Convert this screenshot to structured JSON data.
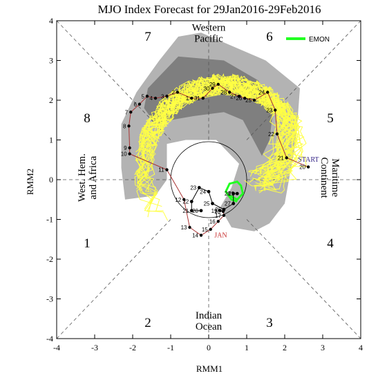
{
  "chart_data": {
    "type": "scatter",
    "title": "MJO Index Forecast for 29Jan2016-29Feb2016",
    "xlabel": "RMM1",
    "ylabel": "RMM2",
    "xlim": [
      -4,
      4
    ],
    "ylim": [
      -4,
      4
    ],
    "xticks": [
      "-4",
      "-3",
      "-2",
      "-1",
      "0",
      "1",
      "2",
      "3",
      "4"
    ],
    "yticks": [
      "-4",
      "-3",
      "-2",
      "-1",
      "0",
      "1",
      "2",
      "3",
      "4"
    ],
    "phases": [
      {
        "label": "1",
        "x": -3.2,
        "y": -1.6
      },
      {
        "label": "2",
        "x": -1.6,
        "y": -3.6
      },
      {
        "label": "3",
        "x": 1.6,
        "y": -3.6
      },
      {
        "label": "4",
        "x": 3.2,
        "y": -1.6
      },
      {
        "label": "5",
        "x": 3.2,
        "y": 1.55
      },
      {
        "label": "6",
        "x": 1.6,
        "y": 3.6
      },
      {
        "label": "7",
        "x": -1.6,
        "y": 3.6
      },
      {
        "label": "8",
        "x": -3.2,
        "y": 1.55
      }
    ],
    "regions": [
      {
        "lines": [
          "Western",
          "Pacific"
        ],
        "x": 0,
        "y": 3.7,
        "rotate": 0
      },
      {
        "lines": [
          "Indian",
          "Ocean"
        ],
        "x": 0,
        "y": -3.55,
        "rotate": 0
      },
      {
        "lines": [
          "West. Hem.",
          "and Africa"
        ],
        "x": -3.2,
        "y": 0.05,
        "rotate": -90
      },
      {
        "lines": [
          "Maritime",
          "Continent"
        ],
        "x": 3.2,
        "y": 0.05,
        "rotate": 90
      }
    ],
    "legend": {
      "label": "EMON",
      "color": "#22ff22",
      "position": "top-right"
    },
    "observed": {
      "color": "#a83232",
      "days": [
        {
          "d": "20",
          "x": 2.62,
          "y": 0.32
        },
        {
          "d": "21",
          "x": 2.05,
          "y": 0.55
        },
        {
          "d": "22",
          "x": 1.8,
          "y": 1.15
        },
        {
          "d": "23",
          "x": 1.75,
          "y": 1.75
        },
        {
          "d": "24",
          "x": 1.55,
          "y": 2.2
        },
        {
          "d": "25",
          "x": 1.2,
          "y": 2.0
        },
        {
          "d": "26",
          "x": 0.95,
          "y": 2.05
        },
        {
          "d": "27",
          "x": 0.8,
          "y": 2.1
        },
        {
          "d": "28",
          "x": 0.55,
          "y": 2.2
        },
        {
          "d": "29",
          "x": 0.25,
          "y": 2.4
        },
        {
          "d": "30",
          "x": 0.1,
          "y": 2.3
        },
        {
          "d": "31",
          "x": -0.15,
          "y": 2.05
        },
        {
          "d": "1",
          "x": -0.45,
          "y": 2.05
        },
        {
          "d": "2",
          "x": -0.82,
          "y": 2.2
        },
        {
          "d": "3",
          "x": -1.1,
          "y": 2.1
        },
        {
          "d": "4",
          "x": -1.4,
          "y": 2.05
        },
        {
          "d": "5",
          "x": -1.62,
          "y": 2.1
        },
        {
          "d": "6",
          "x": -1.82,
          "y": 1.9
        },
        {
          "d": "7",
          "x": -2.05,
          "y": 1.7
        },
        {
          "d": "8",
          "x": -2.1,
          "y": 1.35
        },
        {
          "d": "9",
          "x": -2.08,
          "y": 0.8
        },
        {
          "d": "10",
          "x": -2.08,
          "y": 0.65
        },
        {
          "d": "11",
          "x": -1.1,
          "y": 0.25
        },
        {
          "d": "12",
          "x": -0.65,
          "y": -0.5
        },
        {
          "d": "13",
          "x": -0.5,
          "y": -1.2
        },
        {
          "d": "14",
          "x": -0.2,
          "y": -1.4
        },
        {
          "d": "15",
          "x": 0.05,
          "y": -1.25
        },
        {
          "d": "16",
          "x": 0.25,
          "y": -1.05
        },
        {
          "d": "17",
          "x": 0.4,
          "y": -0.9
        },
        {
          "d": "18",
          "x": 0.38,
          "y": -0.8
        },
        {
          "d": "19",
          "x": 0.3,
          "y": -0.78
        }
      ],
      "month_labels": [
        {
          "text": "JAN",
          "x": 0.15,
          "y": -1.45,
          "color": "#c83232"
        },
        {
          "text": "START",
          "x": 2.35,
          "y": 0.45,
          "color": "#3a2a8a"
        }
      ]
    },
    "ensemble_mean": {
      "color": "#000000",
      "days": [
        {
          "d": "20",
          "x": -0.2,
          "y": -0.78
        },
        {
          "d": "21",
          "x": -0.45,
          "y": -0.78
        },
        {
          "d": "22",
          "x": -0.45,
          "y": -0.55
        },
        {
          "d": "23",
          "x": -0.25,
          "y": -0.2
        },
        {
          "d": "24",
          "x": 0.0,
          "y": -0.3
        },
        {
          "d": "25",
          "x": 0.1,
          "y": -0.6
        },
        {
          "d": "26",
          "x": 0.4,
          "y": -0.75
        },
        {
          "d": "27",
          "x": 0.65,
          "y": -0.6
        },
        {
          "d": "28",
          "x": 0.65,
          "y": -0.35
        },
        {
          "d": "29",
          "x": 0.75,
          "y": -0.35
        }
      ]
    },
    "emon_track": {
      "x": [
        0.55,
        0.75,
        0.9,
        0.85,
        0.75,
        0.55,
        0.45,
        0.6,
        0.75
      ],
      "y": [
        -0.4,
        -0.5,
        -0.35,
        -0.15,
        -0.05,
        -0.1,
        -0.3,
        -0.5,
        -0.55
      ]
    }
  }
}
